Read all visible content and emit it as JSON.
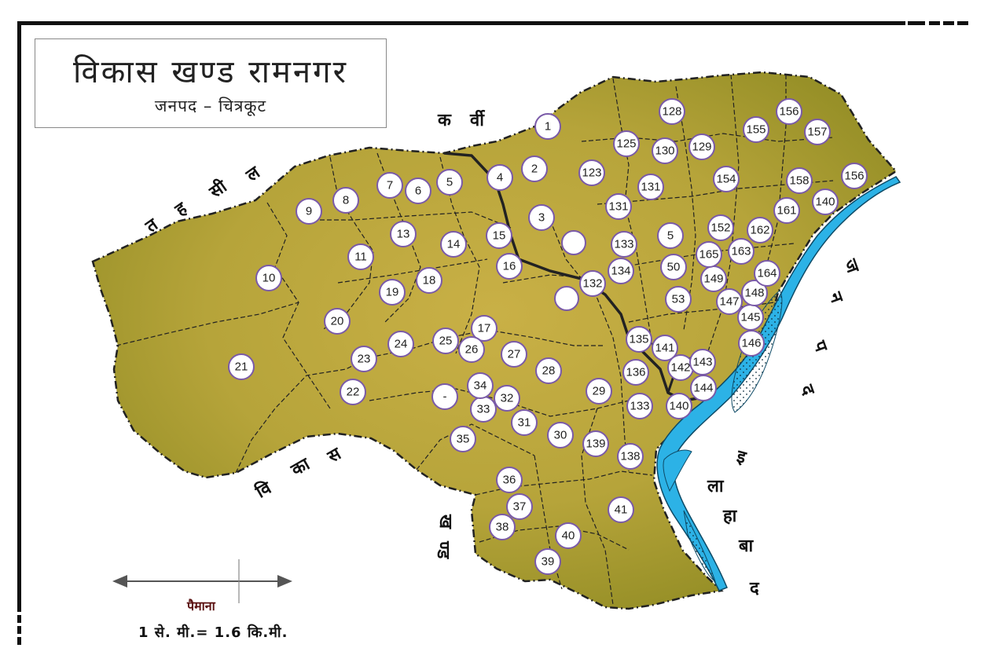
{
  "title": "विकास खण्ड रामनगर",
  "subtitle": "जनपद – चित्रकूट",
  "scale": {
    "label": "पैमाना",
    "text": "1 से. मी.= 1.6 कि.मी."
  },
  "colors": {
    "land": "#b5a93a",
    "land_dark": "#8f7f22",
    "river": "#2cb2e6",
    "border": "#111111",
    "marker_stroke": "#7a5aa8"
  },
  "neighbours": {
    "north": [
      "क",
      "र्वी"
    ],
    "northwest": [
      "त",
      "ह",
      "सी",
      "ल"
    ],
    "southwest": [
      "वि",
      "का",
      "स"
    ],
    "south": [
      "ख",
      "ण्ड"
    ],
    "southeast": [
      "इ",
      "ला",
      "हा",
      "बा",
      "द"
    ],
    "east": [
      "ज",
      "न",
      "प",
      "द"
    ]
  },
  "villages": [
    "1",
    "2",
    "3",
    "4",
    "5",
    "6",
    "7",
    "8",
    "9",
    "10",
    "11",
    "13",
    "14",
    "15",
    "16",
    "17",
    "18",
    "19",
    "20",
    "21",
    "22",
    "23",
    "24",
    "25",
    "26",
    "27",
    "28",
    "29",
    "30",
    "31",
    "32",
    "33",
    "34",
    "-",
    "35",
    "36",
    "37",
    "38",
    "39",
    "40",
    "41",
    "123",
    "125",
    "128",
    "129",
    "130",
    "131",
    "131",
    "132",
    "133",
    "133",
    "134",
    "135",
    "136",
    "138",
    "139",
    "140",
    "140",
    "141",
    "142",
    "143",
    "144",
    "145",
    "146",
    "147",
    "148",
    "149",
    "50",
    "5",
    "53",
    "152",
    "154",
    "155",
    "156",
    "156",
    "157",
    "158",
    "161",
    "162",
    "163",
    "164",
    "165",
    ""
  ]
}
